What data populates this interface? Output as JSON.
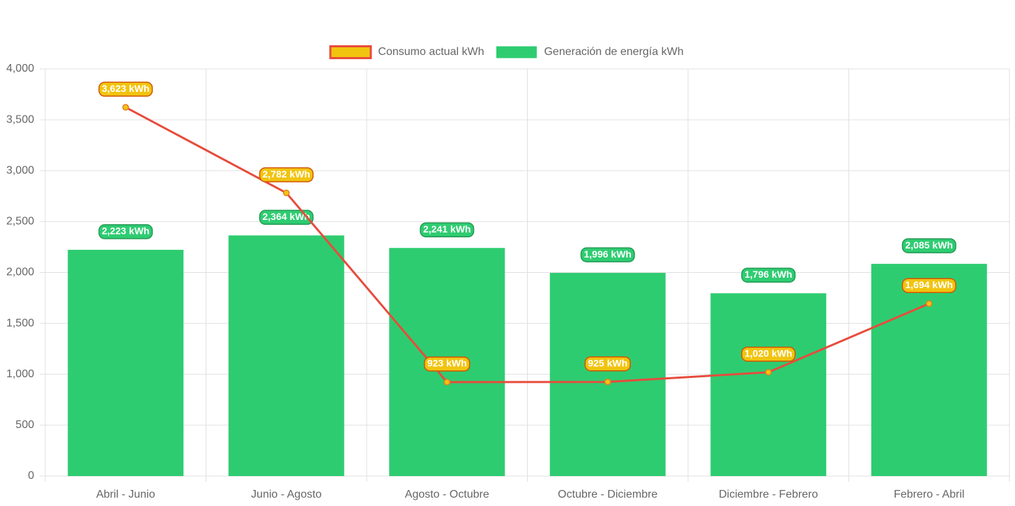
{
  "chart_data": {
    "type": "bar",
    "categories": [
      "Abril - Junio",
      "Junio - Agosto",
      "Agosto - Octubre",
      "Octubre - Diciembre",
      "Diciembre - Febrero",
      "Febrero - Abril"
    ],
    "series": [
      {
        "name": "Consumo actual kWh",
        "type": "line",
        "color": "#e74c3c",
        "fill": "#f1c40f",
        "values": [
          3623,
          2782,
          923,
          925,
          1020,
          1694
        ],
        "value_labels": [
          "3,623 kWh",
          "2,782 kWh",
          "923 kWh",
          "925 kWh",
          "1,020 kWh",
          "1,694 kWh"
        ]
      },
      {
        "name": "Generación de energía kWh",
        "type": "bar",
        "color": "#2ecc71",
        "values": [
          2223,
          2364,
          2241,
          1996,
          1796,
          2085
        ],
        "value_labels": [
          "2,223 kWh",
          "2,364 kWh",
          "2,241 kWh",
          "1,996 kWh",
          "1,796 kWh",
          "2,085 kWh"
        ]
      }
    ],
    "ylim": [
      0,
      4000
    ],
    "yticks": [
      0,
      500,
      {
        "value": 1000,
        "label": "1,000"
      },
      {
        "value": 1500,
        "label": "1,500"
      },
      {
        "value": 2000,
        "label": "2,000"
      },
      {
        "value": 2500,
        "label": "2,500"
      },
      {
        "value": 3000,
        "label": "3,000"
      },
      {
        "value": 3500,
        "label": "3,500"
      },
      {
        "value": 4000,
        "label": "4,000"
      }
    ],
    "grid": true,
    "legend": "top"
  }
}
